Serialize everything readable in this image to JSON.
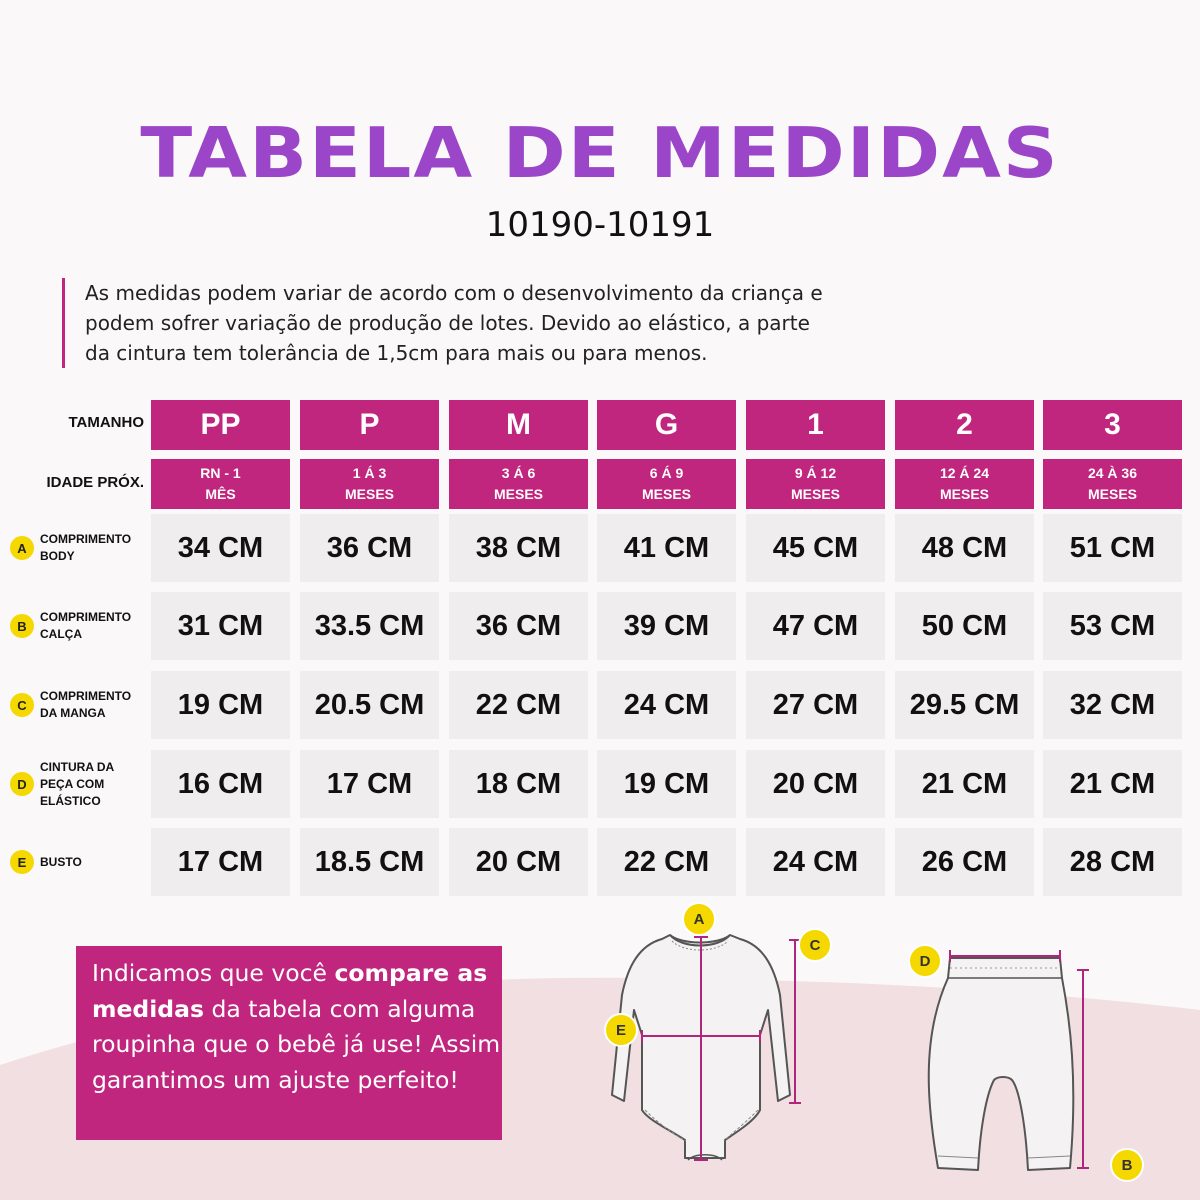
{
  "header": {
    "title": "TABELA DE MEDIDAS",
    "subtitle": "10190-10191"
  },
  "note": {
    "lines": [
      "As medidas podem variar de acordo com o desenvolvimento da criança e",
      "podem sofrer variação de produção de lotes. Devido ao elástico, a parte",
      "da cintura tem tolerância de 1,5cm para mais ou para menos."
    ]
  },
  "table": {
    "size_label": "TAMANHO",
    "age_label": "IDADE PRÓX.",
    "sizes": [
      "PP",
      "P",
      "M",
      "G",
      "1",
      "2",
      "3"
    ],
    "ages": [
      [
        "RN - 1",
        "MÊS"
      ],
      [
        "1 Á 3",
        "MESES"
      ],
      [
        "3 Á 6",
        "MESES"
      ],
      [
        "6 Á 9",
        "MESES"
      ],
      [
        "9 Á 12",
        "MESES"
      ],
      [
        "12 Á 24",
        "MESES"
      ],
      [
        "24 À 36",
        "MESES"
      ]
    ],
    "rows": [
      {
        "badge": "A",
        "label": [
          "COMPRIMENTO",
          "BODY"
        ],
        "values": [
          "34 CM",
          "36 CM",
          "38 CM",
          "41 CM",
          "45 CM",
          "48 CM",
          "51 CM"
        ]
      },
      {
        "badge": "B",
        "label": [
          "COMPRIMENTO",
          "CALÇA"
        ],
        "values": [
          "31 CM",
          "33.5 CM",
          "36 CM",
          "39 CM",
          "47 CM",
          "50 CM",
          "53 CM"
        ]
      },
      {
        "badge": "C",
        "label": [
          "COMPRIMENTO",
          "DA MANGA"
        ],
        "values": [
          "19 CM",
          "20.5 CM",
          "22 CM",
          "24 CM",
          "27 CM",
          "29.5 CM",
          "32 CM"
        ]
      },
      {
        "badge": "D",
        "label": [
          "CINTURA DA",
          "PEÇA COM",
          "ELÁSTICO"
        ],
        "values": [
          "16 CM",
          "17 CM",
          "18 CM",
          "19 CM",
          "20 CM",
          "21 CM",
          "21 CM"
        ]
      },
      {
        "badge": "E",
        "label": [
          "BUSTO"
        ],
        "values": [
          "17 CM",
          "18.5 CM",
          "20 CM",
          "22 CM",
          "24 CM",
          "26 CM",
          "28 CM"
        ]
      }
    ]
  },
  "callout": {
    "parts": [
      {
        "text": "Indicamos que você ",
        "bold": false
      },
      {
        "text": "compare as medidas",
        "bold": true
      },
      {
        "text": " da tabela com alguma roupinha que o bebê já use! Assim garantimos um ajuste perfeito!",
        "bold": false
      }
    ]
  },
  "diagram": {
    "body_badges": [
      "A",
      "C",
      "E"
    ],
    "pants_badges": [
      "D",
      "B"
    ]
  },
  "colors": {
    "accent": "#c0267e",
    "title": "#9b46c9",
    "badge": "#f5d800",
    "cell": "#efedee",
    "wave": "#f1dfe1"
  }
}
